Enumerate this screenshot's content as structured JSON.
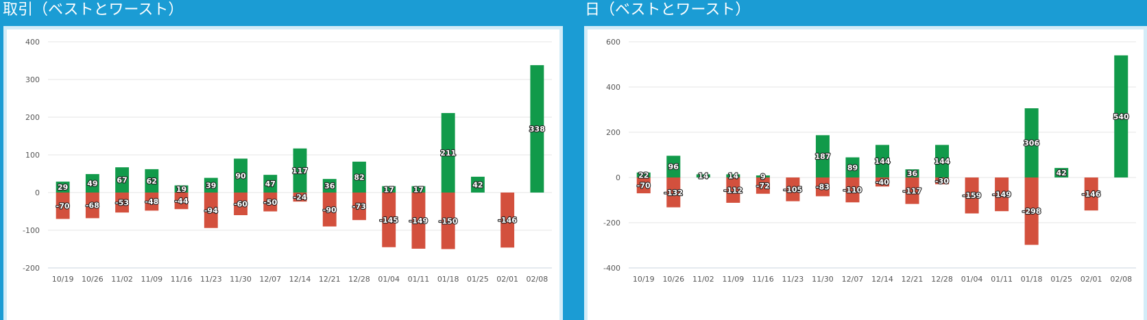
{
  "colors": {
    "positive": "#119a4a",
    "negative": "#d3503d",
    "background": "#1b9cd4",
    "frame": "#d3ecf8"
  },
  "panels": [
    {
      "title": "取引（ベストとワースト）"
    },
    {
      "title": "日（ベストとワースト）"
    }
  ],
  "chart_data": [
    {
      "type": "bar",
      "title": "取引（ベストとワースト）",
      "categories": [
        "10/19",
        "10/26",
        "11/02",
        "11/09",
        "11/16",
        "11/23",
        "11/30",
        "12/07",
        "12/14",
        "12/21",
        "12/28",
        "01/04",
        "01/11",
        "01/18",
        "01/25",
        "02/01",
        "02/08"
      ],
      "series": [
        {
          "values": [
            29,
            49,
            67,
            62,
            19,
            39,
            90,
            47,
            117,
            36,
            82,
            17,
            17,
            211,
            42,
            null,
            338
          ]
        },
        {
          "values": [
            -70,
            -68,
            -53,
            -48,
            -44,
            -94,
            -60,
            -50,
            -24,
            -90,
            -73,
            -145,
            -149,
            -150,
            null,
            -146,
            null
          ]
        }
      ],
      "ylim": [
        -200,
        400
      ],
      "yticks": [
        -200,
        -100,
        0,
        100,
        200,
        300,
        400
      ],
      "grid": true,
      "xlabel": "",
      "ylabel": ""
    },
    {
      "type": "bar",
      "title": "日（ベストとワースト）",
      "categories": [
        "10/19",
        "10/26",
        "11/02",
        "11/09",
        "11/16",
        "11/23",
        "11/30",
        "12/07",
        "12/14",
        "12/21",
        "12/28",
        "01/04",
        "01/11",
        "01/18",
        "01/25",
        "02/01",
        "02/08"
      ],
      "series": [
        {
          "values": [
            22,
            96,
            14,
            14,
            9,
            null,
            187,
            89,
            144,
            36,
            144,
            null,
            null,
            306,
            42,
            null,
            540
          ]
        },
        {
          "values": [
            -70,
            -132,
            null,
            -112,
            -72,
            -105,
            -83,
            -110,
            -40,
            -117,
            -30,
            -159,
            -149,
            -298,
            null,
            -146,
            null
          ]
        }
      ],
      "ylim": [
        -400,
        600
      ],
      "yticks": [
        -400,
        -200,
        0,
        200,
        400,
        600
      ],
      "grid": true,
      "xlabel": "",
      "ylabel": ""
    }
  ]
}
